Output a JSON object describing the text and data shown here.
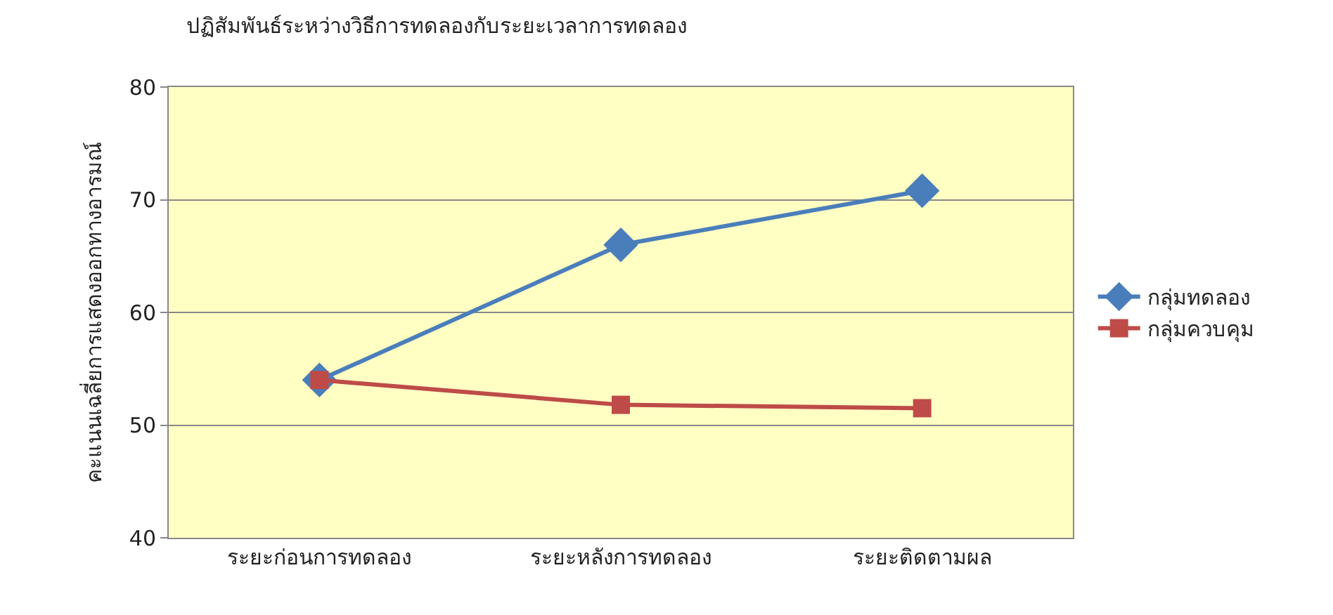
{
  "chart_data": {
    "type": "line",
    "title": "ปฏิสัมพันธ์ระหว่างวิธีการทดลองกับระยะเวลาการทดลอง",
    "ylabel": "คะแนนเฉลี่ยการแสดงออกทางอารมณ์",
    "categories": [
      "ระยะก่อนการทดลอง",
      "ระยะหลังการทดลอง",
      "ระยะติดตามผล"
    ],
    "series": [
      {
        "name": "กลุ่มทดลอง",
        "color": "#4a7ebb",
        "marker": "diamond",
        "values": [
          54,
          66,
          70.8
        ]
      },
      {
        "name": "กลุ่มควบคุม",
        "color": "#be4b48",
        "marker": "square",
        "values": [
          54,
          51.8,
          51.5
        ]
      }
    ],
    "ylim": [
      40,
      80
    ],
    "yticks": [
      40,
      50,
      60,
      70,
      80
    ],
    "grid": "y",
    "legend": "right",
    "line_style": "solid"
  }
}
